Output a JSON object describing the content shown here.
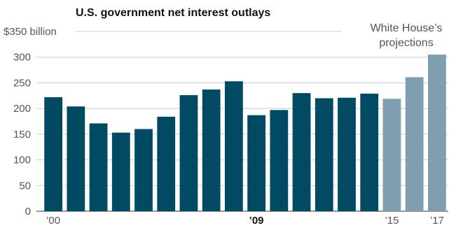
{
  "chart_data": {
    "type": "bar",
    "title": "U.S. government net interest outlays",
    "y_unit_label": "$350 billion",
    "ylim": [
      0,
      350
    ],
    "yticks": [
      0,
      50,
      100,
      150,
      200,
      250,
      300,
      350
    ],
    "ytick_labels": [
      "0",
      "50",
      "100",
      "150",
      "200",
      "250",
      "300",
      "$350 billion"
    ],
    "categories": [
      "2000",
      "2001",
      "2002",
      "2003",
      "2004",
      "2005",
      "2006",
      "2007",
      "2008",
      "2009",
      "2010",
      "2011",
      "2012",
      "2013",
      "2014",
      "2015",
      "2016",
      "2017"
    ],
    "x_tick_labels": [
      {
        "index": 0,
        "label": "’00",
        "bold": false
      },
      {
        "index": 9,
        "label": "’09",
        "bold": true
      },
      {
        "index": 15,
        "label": "’15",
        "bold": false
      },
      {
        "index": 17,
        "label": "’17",
        "bold": false
      }
    ],
    "values": [
      222,
      204,
      171,
      153,
      160,
      184,
      226,
      237,
      253,
      187,
      197,
      230,
      220,
      221,
      229,
      219,
      261,
      305
    ],
    "projected_from_index": 15,
    "annotation_lines": [
      "White House’s",
      "projections"
    ],
    "colors": {
      "actual": "#004b63",
      "projection": "#7f9fb0",
      "grid": "#cccccc"
    },
    "grid": true
  }
}
